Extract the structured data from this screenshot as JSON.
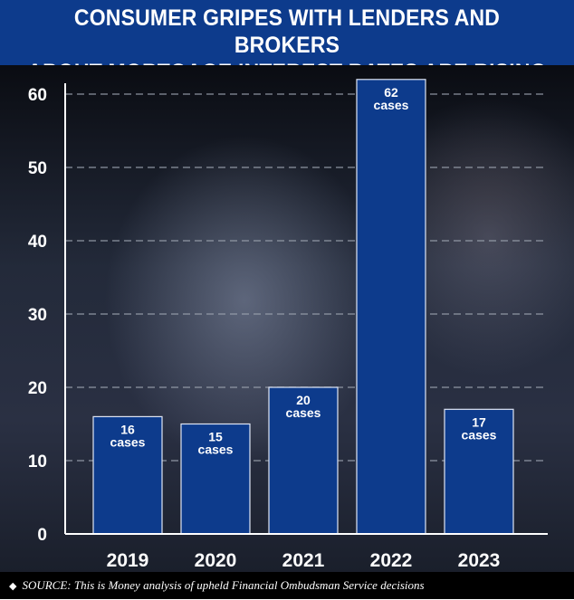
{
  "header": {
    "line1": "CONSUMER GRIPES WITH LENDERS AND BROKERS",
    "line2": "ABOUT MORTGAGE INTEREST RATES ARE RISING"
  },
  "footer": {
    "bullet": "◆",
    "source": "SOURCE: This is Money analysis of upheld Financial Ombudsman Service decisions"
  },
  "colors": {
    "header_bg": "#0d3b8c",
    "bar_fill": "#0d3b8c",
    "bar_stroke": "#dfe6f5",
    "gridline": "#9aa1ad",
    "text": "#ffffff"
  },
  "chart_data": {
    "type": "bar",
    "title": "CONSUMER GRIPES WITH LENDERS AND BROKERS ABOUT MORTGAGE INTEREST RATES ARE RISING",
    "categories": [
      "2019",
      "2020",
      "2021",
      "2022",
      "2023"
    ],
    "values": [
      16,
      15,
      20,
      62,
      17
    ],
    "data_labels": [
      [
        "16",
        "cases"
      ],
      [
        "15",
        "cases"
      ],
      [
        "20",
        "cases"
      ],
      [
        "62",
        "cases"
      ],
      [
        "17",
        "cases"
      ]
    ],
    "yticks": [
      0,
      10,
      20,
      30,
      40,
      50,
      60
    ],
    "ylim": [
      0,
      62
    ],
    "xlabel": "",
    "ylabel": "",
    "grid": true,
    "legend": "none"
  }
}
